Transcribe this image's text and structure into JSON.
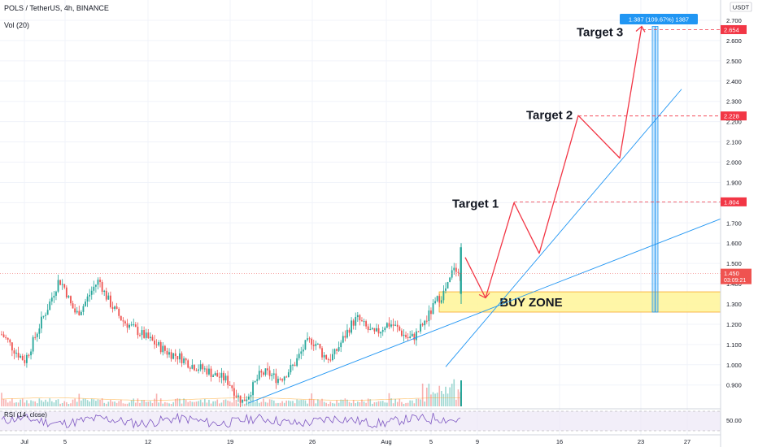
{
  "header": {
    "symbol": "POLS / TetherUS, 4h, BINANCE",
    "volume_indicator": "Vol (20)",
    "rsi_indicator": "RSI (14, close)",
    "currency": "USDT"
  },
  "colors": {
    "up": "#26a69a",
    "down": "#ef5350",
    "projection": "#f23645",
    "trendline": "#2196f3",
    "buy_zone_fill": "#fff59d",
    "buy_zone_border": "#f9a825",
    "rsi_line": "#7e57c2",
    "rsi_band": "#ede7f6",
    "measure_box": "#2196f3"
  },
  "chart_data": {
    "type": "candlestick",
    "title": "POLS / TetherUS, 4h, BINANCE",
    "ylim": [
      0.8,
      2.75
    ],
    "y_ticks": [
      "2.700",
      "2.600",
      "2.500",
      "2.400",
      "2.300",
      "2.200",
      "2.100",
      "2.000",
      "1.900",
      "1.800",
      "1.700",
      "1.600",
      "1.500",
      "1.400",
      "1.300",
      "1.200",
      "1.100",
      "1.000",
      "0.900"
    ],
    "x_ticks": [
      "Jul",
      "5",
      "12",
      "19",
      "26",
      "Aug",
      "5",
      "9",
      "16",
      "23",
      "27"
    ],
    "price_path": [
      1.15,
      1.12,
      1.08,
      1.05,
      1.02,
      1.08,
      1.15,
      1.22,
      1.28,
      1.35,
      1.42,
      1.38,
      1.3,
      1.25,
      1.28,
      1.33,
      1.38,
      1.42,
      1.35,
      1.3,
      1.26,
      1.22,
      1.2,
      1.18,
      1.16,
      1.14,
      1.12,
      1.1,
      1.08,
      1.06,
      1.05,
      1.04,
      1.02,
      1.0,
      0.99,
      0.98,
      0.97,
      0.95,
      0.94,
      0.93,
      0.9,
      0.85,
      0.82,
      0.85,
      0.9,
      0.95,
      0.96,
      0.95,
      0.93,
      0.94,
      0.97,
      1.0,
      1.05,
      1.1,
      1.12,
      1.1,
      1.05,
      1.03,
      1.05,
      1.1,
      1.15,
      1.2,
      1.23,
      1.2,
      1.17,
      1.15,
      1.17,
      1.2,
      1.2,
      1.18,
      1.15,
      1.13,
      1.14,
      1.18,
      1.22,
      1.27,
      1.32,
      1.35,
      1.4,
      1.5,
      1.42
    ],
    "current_price": "1.450",
    "countdown": "03:09:21",
    "targets": [
      {
        "label": "Target 1",
        "price": "1.804"
      },
      {
        "label": "Target 2",
        "price": "2.228"
      },
      {
        "label": "Target 3",
        "price": "2.654"
      }
    ],
    "buy_zone": {
      "label": "BUY ZONE",
      "low": 1.26,
      "high": 1.36
    },
    "measure_label": "1.387 (109.67%) 1387",
    "projection_path": [
      1.53,
      1.33,
      1.8,
      1.55,
      2.23,
      2.02,
      2.67
    ],
    "trendlines": [
      {
        "from": [
          0.81,
          "Jul 19"
        ],
        "to": [
          1.72,
          "Aug 27"
        ]
      },
      {
        "from": [
          0.99,
          "Aug 5"
        ],
        "to": [
          2.36,
          "Aug 27"
        ]
      }
    ],
    "rsi": {
      "level_label": "50.00"
    }
  }
}
